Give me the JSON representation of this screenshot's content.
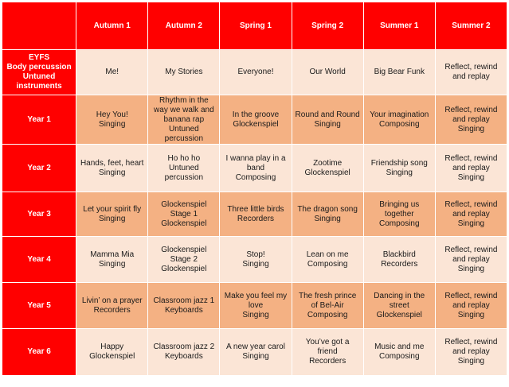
{
  "terms": [
    "Autumn 1",
    "Autumn 2",
    "Spring 1",
    "Spring 2",
    "Summer 1",
    "Summer 2"
  ],
  "rows": [
    {
      "label": [
        "EYFS",
        "Body percussion",
        "Untuned",
        "instruments"
      ],
      "cells": [
        [
          "Me!"
        ],
        [
          "My Stories"
        ],
        [
          "Everyone!"
        ],
        [
          "Our World"
        ],
        [
          "Big Bear Funk"
        ],
        [
          "Reflect, rewind",
          "and replay"
        ]
      ]
    },
    {
      "label": [
        "Year 1"
      ],
      "cells": [
        [
          "Hey You!",
          "Singing"
        ],
        [
          "Rhythm in the",
          "way we walk and",
          "banana rap",
          "Untuned",
          "percussion"
        ],
        [
          "In the groove",
          "Glockenspiel"
        ],
        [
          "Round and Round",
          "Singing"
        ],
        [
          "Your imagination",
          "Composing"
        ],
        [
          "Reflect, rewind",
          "and replay",
          "Singing"
        ]
      ]
    },
    {
      "label": [
        "Year 2"
      ],
      "cells": [
        [
          "Hands, feet, heart",
          "Singing"
        ],
        [
          "Ho ho ho",
          "Untuned",
          "percussion"
        ],
        [
          "I wanna play in a",
          "band",
          "Composing"
        ],
        [
          "Zootime",
          "Glockenspiel"
        ],
        [
          "Friendship song",
          "Singing"
        ],
        [
          "Reflect, rewind",
          "and replay",
          "Singing"
        ]
      ]
    },
    {
      "label": [
        "Year 3"
      ],
      "cells": [
        [
          "Let your spirit fly",
          "Singing"
        ],
        [
          "Glockenspiel",
          "Stage 1",
          "Glockenspiel"
        ],
        [
          "Three little birds",
          "Recorders"
        ],
        [
          "The dragon song",
          "Singing"
        ],
        [
          "Bringing us",
          "together",
          "Composing"
        ],
        [
          "Reflect, rewind",
          "and replay",
          "Singing"
        ]
      ]
    },
    {
      "label": [
        "Year 4"
      ],
      "cells": [
        [
          "Mamma Mia",
          "Singing"
        ],
        [
          "Glockenspiel",
          "Stage 2",
          "Glockenspiel"
        ],
        [
          "Stop!",
          "Singing"
        ],
        [
          "Lean on me",
          "Composing"
        ],
        [
          "Blackbird",
          "Recorders"
        ],
        [
          "Reflect, rewind",
          "and replay",
          "Singing"
        ]
      ]
    },
    {
      "label": [
        "Year 5"
      ],
      "cells": [
        [
          "Livin’ on a prayer",
          "Recorders"
        ],
        [
          "Classroom jazz 1",
          "Keyboards"
        ],
        [
          "Make you feel my",
          "love",
          "Singing"
        ],
        [
          "The fresh prince",
          "of Bel-Air",
          "Composing"
        ],
        [
          "Dancing in the",
          "street",
          "Glockenspiel"
        ],
        [
          "Reflect, rewind",
          "and replay",
          "Singing"
        ]
      ]
    },
    {
      "label": [
        "Year 6"
      ],
      "cells": [
        [
          "Happy",
          "Glockenspiel"
        ],
        [
          "Classroom jazz 2",
          "Keyboards"
        ],
        [
          "A new year carol",
          "Singing"
        ],
        [
          "You’ve got a",
          "friend",
          "Recorders"
        ],
        [
          "Music and me",
          "Composing"
        ],
        [
          "Reflect, rewind",
          "and replay",
          "Singing"
        ]
      ]
    }
  ]
}
